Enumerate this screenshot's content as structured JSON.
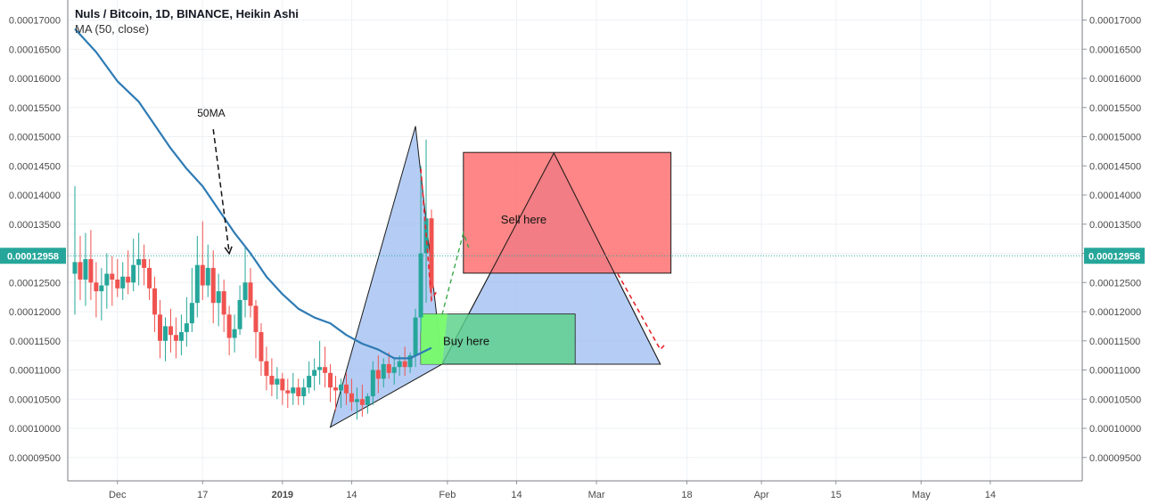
{
  "header": {
    "title": "Nuls / Bitcoin, 1D, BINANCE, Heikin Ashi",
    "indicator": "MA (50, close)"
  },
  "price_axis": {
    "ticks": [
      "0.00017000",
      "0.00016500",
      "0.00016000",
      "0.00015500",
      "0.00015000",
      "0.00014500",
      "0.00014000",
      "0.00013500",
      "0.00013000",
      "0.00012500",
      "0.00012000",
      "0.00011500",
      "0.00011000",
      "0.00010500",
      "0.00010000",
      "0.00009500"
    ],
    "current_price": "0.00012958",
    "current_color": "#26a69a"
  },
  "time_axis": {
    "labels": [
      "Dec",
      "17",
      "2019",
      "14",
      "Feb",
      "14",
      "Mar",
      "18",
      "Apr",
      "15",
      "May",
      "14"
    ]
  },
  "annotations": {
    "ma_label": "50MA",
    "sell_label": "Sell here",
    "buy_label": "Buy here"
  },
  "colors": {
    "up": "#26a69a",
    "down": "#ef5350",
    "ma": "#2e7bb4",
    "sell_box": "#ff6b6b",
    "buy_box": "#5ad18a",
    "triangle": "#9cbcf0"
  },
  "chart_data": {
    "type": "candlestick",
    "title": "Nuls / Bitcoin, 1D, BINANCE, Heikin Ashi",
    "y_range": [
      9.25e-05,
      0.0001725
    ],
    "candles": [
      {
        "date": "2018-11-23",
        "o": 0.0001265,
        "h": 0.0001415,
        "l": 0.0001195,
        "c": 0.0001285
      },
      {
        "date": "2018-11-24",
        "o": 0.0001285,
        "h": 0.000133,
        "l": 0.000122,
        "c": 0.0001255
      },
      {
        "date": "2018-11-25",
        "o": 0.0001255,
        "h": 0.0001335,
        "l": 0.000121,
        "c": 0.000129
      },
      {
        "date": "2018-11-26",
        "o": 0.000129,
        "h": 0.000134,
        "l": 0.000122,
        "c": 0.000125
      },
      {
        "date": "2018-11-27",
        "o": 0.000125,
        "h": 0.0001285,
        "l": 0.000119,
        "c": 0.0001235
      },
      {
        "date": "2018-11-28",
        "o": 0.0001235,
        "h": 0.0001275,
        "l": 0.0001185,
        "c": 0.0001245
      },
      {
        "date": "2018-11-29",
        "o": 0.0001245,
        "h": 0.00013,
        "l": 0.0001205,
        "c": 0.0001265
      },
      {
        "date": "2018-11-30",
        "o": 0.0001265,
        "h": 0.0001295,
        "l": 0.000121,
        "c": 0.0001255
      },
      {
        "date": "2018-12-01",
        "o": 0.0001255,
        "h": 0.000129,
        "l": 0.0001225,
        "c": 0.000124
      },
      {
        "date": "2018-12-02",
        "o": 0.000124,
        "h": 0.0001285,
        "l": 0.000122,
        "c": 0.000126
      },
      {
        "date": "2018-12-03",
        "o": 0.000126,
        "h": 0.0001305,
        "l": 0.000123,
        "c": 0.000125
      },
      {
        "date": "2018-12-04",
        "o": 0.000125,
        "h": 0.0001325,
        "l": 0.0001235,
        "c": 0.000128
      },
      {
        "date": "2018-12-05",
        "o": 0.000128,
        "h": 0.0001335,
        "l": 0.0001245,
        "c": 0.000129
      },
      {
        "date": "2018-12-06",
        "o": 0.000129,
        "h": 0.0001315,
        "l": 0.0001245,
        "c": 0.0001275
      },
      {
        "date": "2018-12-07",
        "o": 0.0001275,
        "h": 0.000129,
        "l": 0.000122,
        "c": 0.000124
      },
      {
        "date": "2018-12-08",
        "o": 0.000124,
        "h": 0.000126,
        "l": 0.0001165,
        "c": 0.0001195
      },
      {
        "date": "2018-12-09",
        "o": 0.0001195,
        "h": 0.000122,
        "l": 0.000112,
        "c": 0.000115
      },
      {
        "date": "2018-12-10",
        "o": 0.000115,
        "h": 0.000119,
        "l": 0.0001115,
        "c": 0.0001175
      },
      {
        "date": "2018-12-11",
        "o": 0.0001175,
        "h": 0.0001205,
        "l": 0.000113,
        "c": 0.000116
      },
      {
        "date": "2018-12-12",
        "o": 0.000116,
        "h": 0.000119,
        "l": 0.000112,
        "c": 0.000115
      },
      {
        "date": "2018-12-13",
        "o": 0.000115,
        "h": 0.0001195,
        "l": 0.0001125,
        "c": 0.0001165
      },
      {
        "date": "2018-12-14",
        "o": 0.0001165,
        "h": 0.0001225,
        "l": 0.000114,
        "c": 0.000118
      },
      {
        "date": "2018-12-15",
        "o": 0.000118,
        "h": 0.0001275,
        "l": 0.0001165,
        "c": 0.0001215
      },
      {
        "date": "2018-12-16",
        "o": 0.0001215,
        "h": 0.000133,
        "l": 0.000119,
        "c": 0.000128
      },
      {
        "date": "2018-12-17",
        "o": 0.000128,
        "h": 0.0001355,
        "l": 0.000122,
        "c": 0.0001245
      },
      {
        "date": "2018-12-18",
        "o": 0.0001245,
        "h": 0.0001315,
        "l": 0.0001225,
        "c": 0.0001275
      },
      {
        "date": "2018-12-19",
        "o": 0.0001275,
        "h": 0.0001305,
        "l": 0.000118,
        "c": 0.0001215
      },
      {
        "date": "2018-12-20",
        "o": 0.0001215,
        "h": 0.0001265,
        "l": 0.0001175,
        "c": 0.0001235
      },
      {
        "date": "2018-12-21",
        "o": 0.0001235,
        "h": 0.0001255,
        "l": 0.0001165,
        "c": 0.0001195
      },
      {
        "date": "2018-12-22",
        "o": 0.0001195,
        "h": 0.000121,
        "l": 0.0001125,
        "c": 0.0001155
      },
      {
        "date": "2018-12-23",
        "o": 0.0001155,
        "h": 0.0001195,
        "l": 0.000113,
        "c": 0.000117
      },
      {
        "date": "2018-12-24",
        "o": 0.000117,
        "h": 0.0001245,
        "l": 0.000116,
        "c": 0.000122
      },
      {
        "date": "2018-12-25",
        "o": 0.000122,
        "h": 0.000131,
        "l": 0.000119,
        "c": 0.000125
      },
      {
        "date": "2018-12-26",
        "o": 0.000125,
        "h": 0.0001275,
        "l": 0.000119,
        "c": 0.000121
      },
      {
        "date": "2018-12-27",
        "o": 0.000121,
        "h": 0.000122,
        "l": 0.000112,
        "c": 0.0001165
      },
      {
        "date": "2018-12-28",
        "o": 0.0001165,
        "h": 0.000118,
        "l": 0.000109,
        "c": 0.0001115
      },
      {
        "date": "2018-12-29",
        "o": 0.0001115,
        "h": 0.000114,
        "l": 0.0001065,
        "c": 0.000109
      },
      {
        "date": "2018-12-30",
        "o": 0.000109,
        "h": 0.000112,
        "l": 0.0001055,
        "c": 0.0001075
      },
      {
        "date": "2018-12-31",
        "o": 0.0001075,
        "h": 0.0001105,
        "l": 0.000105,
        "c": 0.0001085
      },
      {
        "date": "2019-01-01",
        "o": 0.0001085,
        "h": 0.0001095,
        "l": 0.000104,
        "c": 0.0001065
      },
      {
        "date": "2019-01-02",
        "o": 0.0001065,
        "h": 0.0001085,
        "l": 0.0001035,
        "c": 0.000106
      },
      {
        "date": "2019-01-03",
        "o": 0.000106,
        "h": 0.0001095,
        "l": 0.000104,
        "c": 0.000107
      },
      {
        "date": "2019-01-04",
        "o": 0.000107,
        "h": 0.0001085,
        "l": 0.000104,
        "c": 0.0001055
      },
      {
        "date": "2019-01-05",
        "o": 0.0001055,
        "h": 0.0001085,
        "l": 0.000104,
        "c": 0.000107
      },
      {
        "date": "2019-01-06",
        "o": 0.000107,
        "h": 0.0001115,
        "l": 0.000106,
        "c": 0.000109
      },
      {
        "date": "2019-01-07",
        "o": 0.000109,
        "h": 0.000112,
        "l": 0.0001065,
        "c": 0.00011
      },
      {
        "date": "2019-01-08",
        "o": 0.00011,
        "h": 0.000115,
        "l": 0.0001075,
        "c": 0.0001105
      },
      {
        "date": "2019-01-09",
        "o": 0.0001105,
        "h": 0.000114,
        "l": 0.000107,
        "c": 0.0001095
      },
      {
        "date": "2019-01-10",
        "o": 0.0001095,
        "h": 0.000111,
        "l": 0.0001045,
        "c": 0.000107
      },
      {
        "date": "2019-01-11",
        "o": 0.000107,
        "h": 0.000109,
        "l": 0.000103,
        "c": 0.0001065
      },
      {
        "date": "2019-01-12",
        "o": 0.0001065,
        "h": 0.0001085,
        "l": 0.0001035,
        "c": 0.0001075
      },
      {
        "date": "2019-01-13",
        "o": 0.0001075,
        "h": 0.0001095,
        "l": 0.000104,
        "c": 0.000106
      },
      {
        "date": "2019-01-14",
        "o": 0.000106,
        "h": 0.0001085,
        "l": 0.000103,
        "c": 0.0001045
      },
      {
        "date": "2019-01-15",
        "o": 0.0001045,
        "h": 0.000107,
        "l": 0.0001015,
        "c": 0.000105
      },
      {
        "date": "2019-01-16",
        "o": 0.000105,
        "h": 0.0001075,
        "l": 0.000102,
        "c": 0.000104
      },
      {
        "date": "2019-01-17",
        "o": 0.000104,
        "h": 0.000106,
        "l": 0.0001025,
        "c": 0.0001055
      },
      {
        "date": "2019-01-18",
        "o": 0.0001055,
        "h": 0.0001115,
        "l": 0.000104,
        "c": 0.00011
      },
      {
        "date": "2019-01-19",
        "o": 0.00011,
        "h": 0.0001125,
        "l": 0.000106,
        "c": 0.0001085
      },
      {
        "date": "2019-01-20",
        "o": 0.0001085,
        "h": 0.000112,
        "l": 0.000107,
        "c": 0.000111
      },
      {
        "date": "2019-01-21",
        "o": 0.000111,
        "h": 0.000113,
        "l": 0.0001085,
        "c": 0.0001095
      },
      {
        "date": "2019-01-22",
        "o": 0.0001095,
        "h": 0.000112,
        "l": 0.0001075,
        "c": 0.0001105
      },
      {
        "date": "2019-01-23",
        "o": 0.0001105,
        "h": 0.0001125,
        "l": 0.000109,
        "c": 0.0001115
      },
      {
        "date": "2019-01-24",
        "o": 0.0001115,
        "h": 0.000114,
        "l": 0.000109,
        "c": 0.0001105
      },
      {
        "date": "2019-01-25",
        "o": 0.0001105,
        "h": 0.000113,
        "l": 0.0001095,
        "c": 0.0001125
      },
      {
        "date": "2019-01-26",
        "o": 0.0001125,
        "h": 0.0001205,
        "l": 0.0001105,
        "c": 0.000119
      },
      {
        "date": "2019-01-27",
        "o": 0.000119,
        "h": 0.000145,
        "l": 0.0001165,
        "c": 0.00013
      },
      {
        "date": "2019-01-28",
        "o": 0.00013,
        "h": 0.0001495,
        "l": 0.0001215,
        "c": 0.000136
      },
      {
        "date": "2019-01-29",
        "o": 0.000136,
        "h": 0.0001375,
        "l": 0.0001225,
        "c": 0.000124
      }
    ],
    "ma": {
      "name": "MA (50, close)",
      "points": [
        [
          "2018-11-23",
          0.0001685
        ],
        [
          "2018-11-27",
          0.0001645
        ],
        [
          "2018-12-01",
          0.0001595
        ],
        [
          "2018-12-05",
          0.000156
        ],
        [
          "2018-12-08",
          0.000152
        ],
        [
          "2018-12-11",
          0.000148
        ],
        [
          "2018-12-14",
          0.0001445
        ],
        [
          "2018-12-17",
          0.0001415
        ],
        [
          "2018-12-20",
          0.0001375
        ],
        [
          "2018-12-23",
          0.0001335
        ],
        [
          "2018-12-26",
          0.00013
        ],
        [
          "2018-12-29",
          0.000126
        ],
        [
          "2019-01-01",
          0.000123
        ],
        [
          "2019-01-04",
          0.0001205
        ],
        [
          "2019-01-07",
          0.000119
        ],
        [
          "2019-01-10",
          0.000118
        ],
        [
          "2019-01-13",
          0.000116
        ],
        [
          "2019-01-16",
          0.0001145
        ],
        [
          "2019-01-19",
          0.0001135
        ],
        [
          "2019-01-22",
          0.000112
        ],
        [
          "2019-01-25",
          0.000112
        ],
        [
          "2019-01-29",
          0.0001138
        ]
      ]
    },
    "drawings": {
      "triangle1": [
        [
          "2019-01-10",
          0.0001002
        ],
        [
          "2019-01-26",
          0.0001518
        ],
        [
          "2019-01-31",
          0.000111
        ]
      ],
      "triangle2": [
        [
          "2019-01-31",
          0.000111
        ],
        [
          "2019-02-21",
          0.0001472
        ],
        [
          "2019-03-13",
          0.000111
        ]
      ],
      "sell_box": {
        "from": "2019-02-04",
        "to": "2019-03-15",
        "top": 0.0001473,
        "bottom": 0.0001266
      },
      "buy_box": {
        "from": "2019-01-27",
        "to": "2019-02-25",
        "top": 0.0001196,
        "bottom": 0.000111
      },
      "red_dash_1": [
        [
          "2019-01-27",
          0.0001445
        ],
        [
          "2019-01-29",
          0.000122
        ],
        [
          "2019-01-30",
          0.0001235
        ]
      ],
      "green_dash": [
        [
          "2019-01-31",
          0.0001195
        ],
        [
          "2019-02-04",
          0.0001335
        ],
        [
          "2019-02-05",
          0.000131
        ]
      ],
      "red_dash_2": [
        [
          "2019-03-05",
          0.0001265
        ],
        [
          "2019-03-13",
          0.0001135
        ],
        [
          "2019-03-14",
          0.0001145
        ]
      ],
      "ma_arrow": [
        [
          "2018-12-19",
          0.0001525
        ],
        [
          "2018-12-22",
          0.0001295
        ]
      ]
    }
  }
}
